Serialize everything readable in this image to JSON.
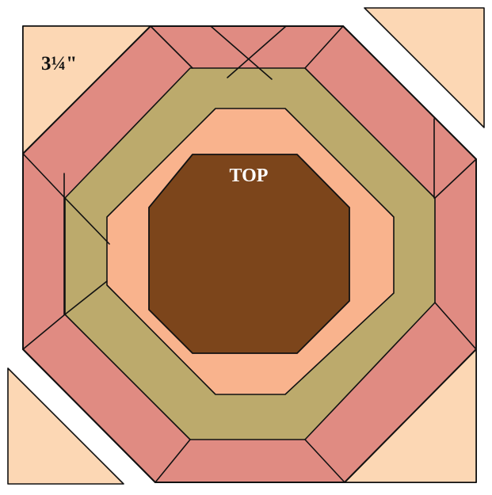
{
  "labels": {
    "corner_size": "3¼\"",
    "center": "TOP"
  },
  "colors": {
    "outline": "#111111",
    "corner_triangle": "#fcd7b4",
    "outer_ring": "#e08b82",
    "middle_ring": "#bcaa6c",
    "inner_ring": "#f9b38d",
    "center": "#7c451b",
    "text_dark": "#111111",
    "text_light": "#ffffff"
  }
}
